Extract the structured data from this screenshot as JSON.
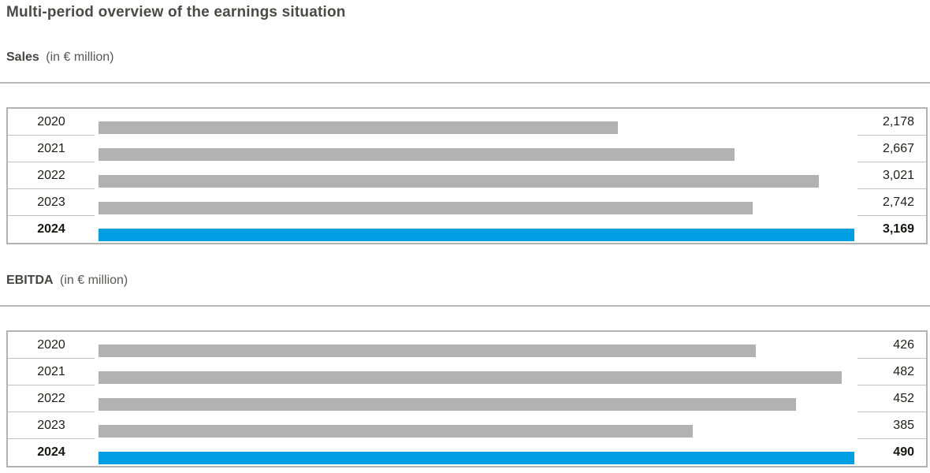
{
  "title": "Multi-period overview of the earnings situation",
  "colors": {
    "default_bar": "#b2b2b2",
    "highlight_bar": "#009ee2",
    "rule_gray": "#b7b7b7",
    "text_dark": "#1d1d1b",
    "heading_gray": "#4a4a49"
  },
  "chart_data": [
    {
      "type": "bar",
      "orientation": "horizontal",
      "title": "Sales (in € million)",
      "title_bold": "Sales",
      "title_unit": "(in € million)",
      "categories": [
        "2020",
        "2021",
        "2022",
        "2023",
        "2024"
      ],
      "values": [
        2178,
        2667,
        3021,
        2742,
        3169
      ],
      "value_labels": [
        "2,178",
        "2,667",
        "3,021",
        "2,742",
        "3,169"
      ],
      "highlight_category": "2024",
      "xlim": [
        0,
        3169
      ],
      "grid": false,
      "legend": "none",
      "bar_colors": {
        "default": "#b2b2b2",
        "highlight": "#009ee2"
      }
    },
    {
      "type": "bar",
      "orientation": "horizontal",
      "title": "EBITDA (in € million)",
      "title_bold": "EBITDA",
      "title_unit": "(in € million)",
      "categories": [
        "2020",
        "2021",
        "2022",
        "2023",
        "2024"
      ],
      "values": [
        426,
        482,
        452,
        385,
        490
      ],
      "value_labels": [
        "426",
        "482",
        "452",
        "385",
        "490"
      ],
      "highlight_category": "2024",
      "xlim": [
        0,
        490
      ],
      "grid": false,
      "legend": "none",
      "bar_colors": {
        "default": "#b2b2b2",
        "highlight": "#009ee2"
      }
    }
  ]
}
